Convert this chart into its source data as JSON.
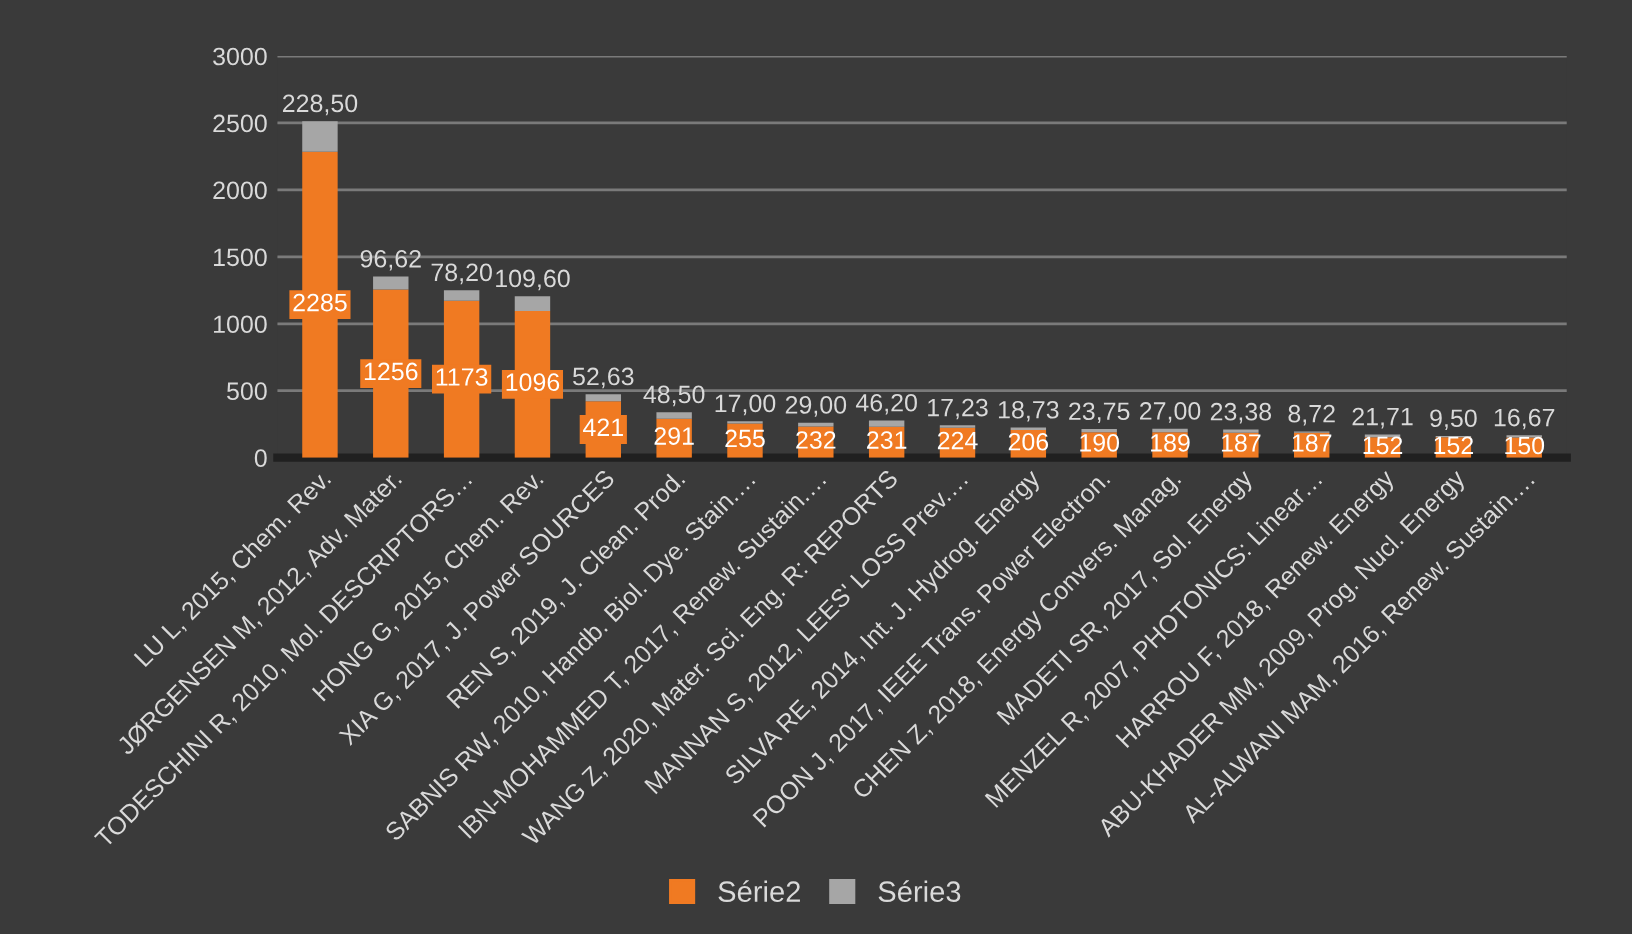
{
  "chart_data": {
    "type": "bar",
    "stacked": true,
    "categories": [
      "LU L, 2015, Chem. Rev.",
      "JØRGENSEN M, 2012, Adv. Mater.",
      "TODESCHINI R, 2010, Mol. DESCRIPTORS…",
      "HONG G, 2015, Chem. Rev.",
      "XIA G, 2017, J. Power SOURCES",
      "REN S, 2019, J. Clean. Prod.",
      "SABNIS RW, 2010, Handb. Biol. Dye. Stain.…",
      "IBN-MOHAMMED T, 2017, Renew. Sustain.…",
      "WANG Z, 2020, Mater. Sci. Eng. R: REPORTS",
      "MANNAN S, 2012, LEES' LOSS Prev.…",
      "SILVA RE, 2014, Int. J. Hydrog. Energy",
      "POON J, 2017, IEEE Trans. Power Electron.",
      "CHEN Z, 2018, Energy Convers. Manag.",
      "MADETI SR, 2017, Sol. Energy",
      "MENZEL R, 2007, PHOTONICS: Linear…",
      "HARROU F, 2018, Renew. Energy",
      "ABU-KHADER MM, 2009, Prog. Nucl. Energy",
      "AL-ALWANI MAM, 2016, Renew. Sustain.…"
    ],
    "series": [
      {
        "name": "Série2",
        "color": "#f07a22",
        "values": [
          2285,
          1256,
          1173,
          1096,
          421,
          291,
          255,
          232,
          231,
          224,
          206,
          190,
          189,
          187,
          187,
          152,
          152,
          150
        ],
        "value_labels": [
          "2285",
          "1256",
          "1173",
          "1096",
          "421",
          "291",
          "255",
          "232",
          "231",
          "224",
          "206",
          "190",
          "189",
          "187",
          "187",
          "152",
          "152",
          "150"
        ]
      },
      {
        "name": "Série3",
        "color": "#a6a6a6",
        "values": [
          228.5,
          96.62,
          78.2,
          109.6,
          52.63,
          48.5,
          17.0,
          29.0,
          46.2,
          17.23,
          18.73,
          23.75,
          27.0,
          23.38,
          8.72,
          21.71,
          9.5,
          16.67
        ],
        "value_labels": [
          "228,50",
          "96,62",
          "78,20",
          "109,60",
          "52,63",
          "48,50",
          "17,00",
          "29,00",
          "46,20",
          "17,23",
          "18,73",
          "23,75",
          "27,00",
          "23,38",
          "8,72",
          "21,71",
          "9,50",
          "16,67"
        ]
      }
    ],
    "ylim": [
      0,
      3000
    ],
    "yticks": [
      0,
      500,
      1000,
      1500,
      2000,
      2500,
      3000
    ],
    "grid": "y",
    "legend": "bottom"
  }
}
